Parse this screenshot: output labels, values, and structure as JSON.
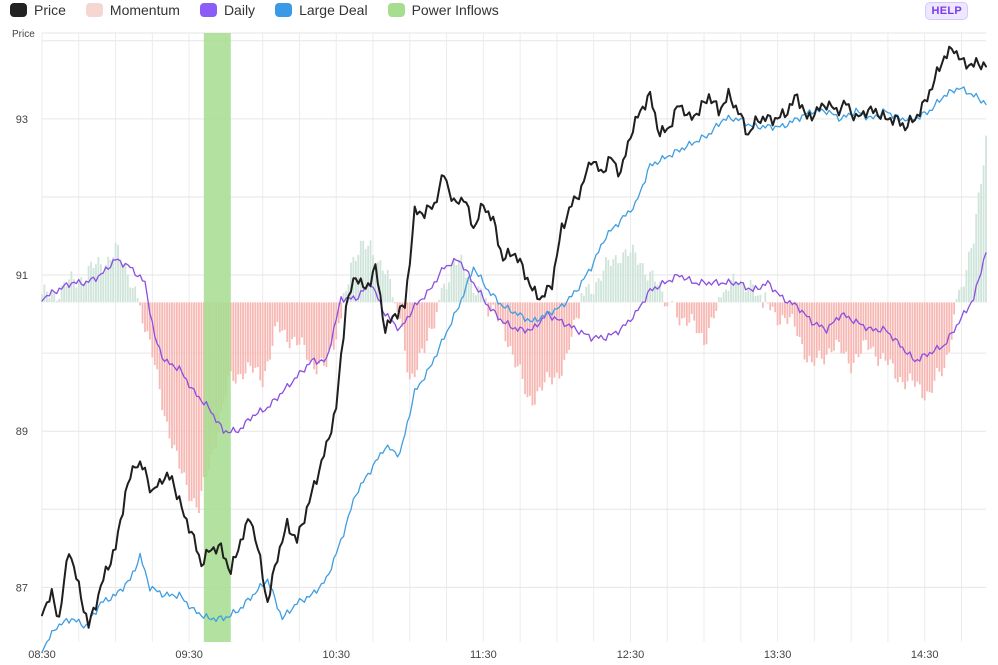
{
  "legend": {
    "price": "Price",
    "momentum": "Momentum",
    "daily": "Daily",
    "large_deal": "Large Deal",
    "power_inflows": "Power Inflows"
  },
  "help_label": "HELP",
  "colors": {
    "price": "#1f1f1f",
    "momentum_pos": "#cfe4da",
    "momentum_neg": "#f7b8b4",
    "daily": "#8a4fe0",
    "large_deal": "#3f9ee0",
    "power_inflows": "#a6dd8f",
    "swatch_price": "#222222",
    "swatch_momentum": "#f6d6d0",
    "swatch_daily": "#8b5cf6",
    "swatch_large_deal": "#3b9ae6",
    "swatch_power": "#a6dd8f"
  },
  "chart_data": {
    "type": "line",
    "ylabel": "Price",
    "ylim": [
      86.3,
      94.1
    ],
    "yticks": [
      87,
      89,
      91,
      93
    ],
    "xlim": [
      "08:30",
      "14:55"
    ],
    "xticks": [
      "08:30",
      "09:30",
      "10:30",
      "11:30",
      "12:30",
      "13:30",
      "14:30"
    ],
    "grid": true,
    "legend_position": "top-left",
    "momentum_baseline": 90.65,
    "power_inflows": [
      {
        "start": "09:36",
        "end": "09:47"
      }
    ],
    "series": [
      {
        "name": "Price",
        "points": [
          [
            "08:30",
            86.7
          ],
          [
            "08:34",
            86.9
          ],
          [
            "08:37",
            86.6
          ],
          [
            "08:41",
            87.5
          ],
          [
            "08:45",
            87.0
          ],
          [
            "08:49",
            86.5
          ],
          [
            "08:52",
            86.8
          ],
          [
            "08:56",
            87.2
          ],
          [
            "09:00",
            87.5
          ],
          [
            "09:04",
            88.2
          ],
          [
            "09:08",
            88.6
          ],
          [
            "09:12",
            88.5
          ],
          [
            "09:15",
            88.2
          ],
          [
            "09:19",
            88.4
          ],
          [
            "09:23",
            88.4
          ],
          [
            "09:27",
            88.0
          ],
          [
            "09:31",
            87.7
          ],
          [
            "09:35",
            87.3
          ],
          [
            "09:39",
            87.5
          ],
          [
            "09:43",
            87.5
          ],
          [
            "09:47",
            87.2
          ],
          [
            "09:51",
            87.6
          ],
          [
            "09:55",
            87.9
          ],
          [
            "09:58",
            87.5
          ],
          [
            "10:02",
            86.8
          ],
          [
            "10:06",
            87.4
          ],
          [
            "10:10",
            87.8
          ],
          [
            "10:14",
            87.6
          ],
          [
            "10:18",
            88.0
          ],
          [
            "10:22",
            88.4
          ],
          [
            "10:26",
            88.8
          ],
          [
            "10:30",
            89.3
          ],
          [
            "10:34",
            90.6
          ],
          [
            "10:38",
            91.0
          ],
          [
            "10:42",
            90.8
          ],
          [
            "10:46",
            91.1
          ],
          [
            "10:50",
            90.3
          ],
          [
            "10:54",
            90.5
          ],
          [
            "10:58",
            90.6
          ],
          [
            "11:02",
            91.8
          ],
          [
            "11:06",
            91.8
          ],
          [
            "11:10",
            91.9
          ],
          [
            "11:14",
            92.3
          ],
          [
            "11:18",
            91.9
          ],
          [
            "11:22",
            92.0
          ],
          [
            "11:26",
            91.6
          ],
          [
            "11:30",
            91.9
          ],
          [
            "11:34",
            91.7
          ],
          [
            "11:38",
            91.2
          ],
          [
            "11:42",
            91.3
          ],
          [
            "11:46",
            91.1
          ],
          [
            "11:50",
            90.8
          ],
          [
            "11:54",
            90.7
          ],
          [
            "11:58",
            90.9
          ],
          [
            "12:02",
            91.6
          ],
          [
            "12:06",
            91.9
          ],
          [
            "12:10",
            92.1
          ],
          [
            "12:14",
            92.5
          ],
          [
            "12:18",
            92.3
          ],
          [
            "12:22",
            92.5
          ],
          [
            "12:26",
            92.3
          ],
          [
            "12:30",
            92.8
          ],
          [
            "12:34",
            93.1
          ],
          [
            "12:38",
            93.3
          ],
          [
            "12:42",
            92.8
          ],
          [
            "12:46",
            92.9
          ],
          [
            "12:50",
            93.2
          ],
          [
            "12:54",
            93.0
          ],
          [
            "12:58",
            93.1
          ],
          [
            "13:02",
            93.3
          ],
          [
            "13:06",
            93.1
          ],
          [
            "13:10",
            93.3
          ],
          [
            "13:14",
            93.1
          ],
          [
            "13:18",
            92.8
          ],
          [
            "13:22",
            93.0
          ],
          [
            "13:26",
            93.0
          ],
          [
            "13:30",
            93.0
          ],
          [
            "13:34",
            93.1
          ],
          [
            "13:38",
            93.3
          ],
          [
            "13:42",
            93.0
          ],
          [
            "13:46",
            93.1
          ],
          [
            "13:50",
            93.2
          ],
          [
            "13:54",
            93.1
          ],
          [
            "13:58",
            93.2
          ],
          [
            "14:02",
            93.0
          ],
          [
            "14:06",
            93.1
          ],
          [
            "14:10",
            93.1
          ],
          [
            "14:14",
            93.0
          ],
          [
            "14:18",
            93.0
          ],
          [
            "14:22",
            92.9
          ],
          [
            "14:26",
            93.0
          ],
          [
            "14:30",
            93.2
          ],
          [
            "14:34",
            93.5
          ],
          [
            "14:38",
            93.8
          ],
          [
            "14:42",
            93.9
          ],
          [
            "14:46",
            93.7
          ],
          [
            "14:50",
            93.7
          ],
          [
            "14:55",
            93.7
          ]
        ]
      },
      {
        "name": "Daily",
        "points": [
          [
            "08:30",
            90.7
          ],
          [
            "08:36",
            90.8
          ],
          [
            "08:42",
            90.9
          ],
          [
            "08:48",
            90.9
          ],
          [
            "08:54",
            91.0
          ],
          [
            "09:00",
            91.2
          ],
          [
            "09:06",
            91.1
          ],
          [
            "09:12",
            90.9
          ],
          [
            "09:16",
            90.2
          ],
          [
            "09:20",
            89.9
          ],
          [
            "09:26",
            89.8
          ],
          [
            "09:32",
            89.5
          ],
          [
            "09:38",
            89.3
          ],
          [
            "09:44",
            89.0
          ],
          [
            "09:50",
            89.0
          ],
          [
            "09:56",
            89.2
          ],
          [
            "10:02",
            89.3
          ],
          [
            "10:08",
            89.5
          ],
          [
            "10:14",
            89.7
          ],
          [
            "10:20",
            89.9
          ],
          [
            "10:26",
            89.9
          ],
          [
            "10:32",
            90.7
          ],
          [
            "10:38",
            90.7
          ],
          [
            "10:44",
            90.9
          ],
          [
            "10:50",
            90.5
          ],
          [
            "10:56",
            90.3
          ],
          [
            "11:02",
            90.6
          ],
          [
            "11:08",
            90.8
          ],
          [
            "11:14",
            91.1
          ],
          [
            "11:20",
            91.2
          ],
          [
            "11:26",
            90.9
          ],
          [
            "11:32",
            90.6
          ],
          [
            "11:38",
            90.4
          ],
          [
            "11:44",
            90.3
          ],
          [
            "11:50",
            90.3
          ],
          [
            "11:56",
            90.5
          ],
          [
            "12:02",
            90.4
          ],
          [
            "12:08",
            90.3
          ],
          [
            "12:14",
            90.2
          ],
          [
            "12:20",
            90.2
          ],
          [
            "12:26",
            90.3
          ],
          [
            "12:32",
            90.5
          ],
          [
            "12:38",
            90.8
          ],
          [
            "12:44",
            90.9
          ],
          [
            "12:50",
            91.0
          ],
          [
            "12:56",
            90.9
          ],
          [
            "13:02",
            90.9
          ],
          [
            "13:08",
            90.9
          ],
          [
            "13:14",
            90.9
          ],
          [
            "13:20",
            90.8
          ],
          [
            "13:26",
            90.9
          ],
          [
            "13:32",
            90.7
          ],
          [
            "13:38",
            90.6
          ],
          [
            "13:44",
            90.4
          ],
          [
            "13:50",
            90.3
          ],
          [
            "13:56",
            90.5
          ],
          [
            "14:02",
            90.4
          ],
          [
            "14:08",
            90.3
          ],
          [
            "14:14",
            90.3
          ],
          [
            "14:20",
            90.1
          ],
          [
            "14:26",
            89.9
          ],
          [
            "14:32",
            90.0
          ],
          [
            "14:38",
            90.1
          ],
          [
            "14:44",
            90.4
          ],
          [
            "14:50",
            90.7
          ],
          [
            "14:55",
            91.3
          ]
        ]
      },
      {
        "name": "Large Deal",
        "points": [
          [
            "08:30",
            86.2
          ],
          [
            "08:36",
            86.5
          ],
          [
            "08:42",
            86.6
          ],
          [
            "08:48",
            86.5
          ],
          [
            "08:54",
            86.8
          ],
          [
            "09:00",
            86.9
          ],
          [
            "09:06",
            87.1
          ],
          [
            "09:10",
            87.4
          ],
          [
            "09:14",
            87.0
          ],
          [
            "09:20",
            86.9
          ],
          [
            "09:26",
            86.9
          ],
          [
            "09:32",
            86.7
          ],
          [
            "09:38",
            86.6
          ],
          [
            "09:44",
            86.6
          ],
          [
            "09:50",
            86.7
          ],
          [
            "09:56",
            86.9
          ],
          [
            "10:02",
            87.1
          ],
          [
            "10:08",
            86.6
          ],
          [
            "10:14",
            86.8
          ],
          [
            "10:20",
            86.9
          ],
          [
            "10:26",
            87.1
          ],
          [
            "10:32",
            87.6
          ],
          [
            "10:38",
            88.2
          ],
          [
            "10:44",
            88.5
          ],
          [
            "10:50",
            88.8
          ],
          [
            "10:56",
            88.7
          ],
          [
            "11:02",
            89.5
          ],
          [
            "11:08",
            89.8
          ],
          [
            "11:14",
            90.2
          ],
          [
            "11:20",
            90.6
          ],
          [
            "11:26",
            91.1
          ],
          [
            "11:32",
            90.8
          ],
          [
            "11:38",
            90.6
          ],
          [
            "11:44",
            90.5
          ],
          [
            "11:50",
            90.4
          ],
          [
            "11:56",
            90.5
          ],
          [
            "12:02",
            90.6
          ],
          [
            "12:08",
            90.8
          ],
          [
            "12:14",
            91.1
          ],
          [
            "12:20",
            91.5
          ],
          [
            "12:26",
            91.7
          ],
          [
            "12:32",
            91.9
          ],
          [
            "12:38",
            92.4
          ],
          [
            "12:44",
            92.5
          ],
          [
            "12:50",
            92.6
          ],
          [
            "12:56",
            92.7
          ],
          [
            "13:02",
            92.8
          ],
          [
            "13:08",
            93.0
          ],
          [
            "13:14",
            93.0
          ],
          [
            "13:20",
            92.9
          ],
          [
            "13:26",
            92.9
          ],
          [
            "13:32",
            92.9
          ],
          [
            "13:38",
            93.0
          ],
          [
            "13:44",
            93.1
          ],
          [
            "13:50",
            93.1
          ],
          [
            "13:56",
            93.0
          ],
          [
            "14:02",
            93.1
          ],
          [
            "14:08",
            93.0
          ],
          [
            "14:14",
            93.1
          ],
          [
            "14:20",
            93.0
          ],
          [
            "14:26",
            93.0
          ],
          [
            "14:32",
            93.1
          ],
          [
            "14:38",
            93.3
          ],
          [
            "14:44",
            93.4
          ],
          [
            "14:50",
            93.3
          ],
          [
            "14:55",
            93.2
          ]
        ]
      },
      {
        "name": "Momentum",
        "points": [
          [
            "08:30",
            90.7
          ],
          [
            "08:42",
            90.9
          ],
          [
            "08:52",
            91.1
          ],
          [
            "09:00",
            91.3
          ],
          [
            "09:06",
            91.0
          ],
          [
            "09:12",
            90.4
          ],
          [
            "09:18",
            89.5
          ],
          [
            "09:26",
            88.5
          ],
          [
            "09:34",
            88.0
          ],
          [
            "09:40",
            88.8
          ],
          [
            "09:46",
            89.6
          ],
          [
            "09:52",
            89.8
          ],
          [
            "10:00",
            89.7
          ],
          [
            "10:06",
            90.3
          ],
          [
            "10:12",
            90.2
          ],
          [
            "10:20",
            89.9
          ],
          [
            "10:26",
            89.8
          ],
          [
            "10:32",
            90.5
          ],
          [
            "10:36",
            91.2
          ],
          [
            "10:44",
            91.4
          ],
          [
            "10:50",
            91.0
          ],
          [
            "10:54",
            90.7
          ],
          [
            "11:00",
            89.7
          ],
          [
            "11:06",
            90.0
          ],
          [
            "11:12",
            90.7
          ],
          [
            "11:18",
            91.2
          ],
          [
            "11:24",
            91.0
          ],
          [
            "11:30",
            90.7
          ],
          [
            "11:40",
            90.2
          ],
          [
            "11:48",
            89.4
          ],
          [
            "11:56",
            89.6
          ],
          [
            "12:04",
            89.9
          ],
          [
            "12:10",
            90.7
          ],
          [
            "12:18",
            91.0
          ],
          [
            "12:26",
            91.3
          ],
          [
            "12:34",
            91.2
          ],
          [
            "12:42",
            90.8
          ],
          [
            "12:50",
            90.5
          ],
          [
            "13:00",
            90.2
          ],
          [
            "13:08",
            90.7
          ],
          [
            "13:14",
            91.0
          ],
          [
            "13:22",
            90.7
          ],
          [
            "13:30",
            90.5
          ],
          [
            "13:38",
            90.3
          ],
          [
            "13:44",
            89.8
          ],
          [
            "13:52",
            90.1
          ],
          [
            "14:00",
            89.9
          ],
          [
            "14:08",
            90.1
          ],
          [
            "14:16",
            89.8
          ],
          [
            "14:24",
            89.6
          ],
          [
            "14:32",
            89.5
          ],
          [
            "14:38",
            89.8
          ],
          [
            "14:44",
            90.8
          ],
          [
            "14:50",
            91.4
          ],
          [
            "14:55",
            92.8
          ]
        ]
      }
    ]
  }
}
